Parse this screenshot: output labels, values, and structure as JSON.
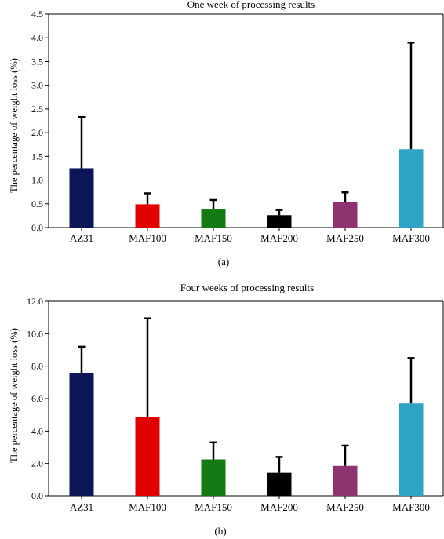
{
  "chart_data": [
    {
      "type": "bar",
      "panel_label": "(a)",
      "title": "One week of processing results",
      "ylabel": "The percentage of weight loss (%)",
      "xlabel": "",
      "categories": [
        "AZ31",
        "MAF100",
        "MAF150",
        "MAF200",
        "MAF250",
        "MAF300"
      ],
      "values": [
        1.25,
        0.49,
        0.38,
        0.26,
        0.54,
        1.65
      ],
      "error_upper": [
        2.33,
        0.72,
        0.58,
        0.37,
        0.74,
        3.9
      ],
      "colors": [
        "#0c1557",
        "#e00000",
        "#137a13",
        "#000000",
        "#8e3370",
        "#2ea3c3"
      ],
      "ylim": [
        0,
        4.5
      ],
      "yticks": [
        "0.0",
        "0.5",
        "1.0",
        "1.5",
        "2.0",
        "2.5",
        "3.0",
        "3.5",
        "4.0",
        "4.5"
      ],
      "grid": false
    },
    {
      "type": "bar",
      "panel_label": "(b)",
      "title": "Four weeks of processing results",
      "ylabel": "The percentage of weight loss (%)",
      "xlabel": "",
      "categories": [
        "AZ31",
        "MAF100",
        "MAF150",
        "MAF200",
        "MAF250",
        "MAF300"
      ],
      "values": [
        7.55,
        4.85,
        2.25,
        1.42,
        1.85,
        5.7
      ],
      "error_upper": [
        9.2,
        10.95,
        3.3,
        2.4,
        3.1,
        8.5
      ],
      "colors": [
        "#0c1557",
        "#e00000",
        "#137a13",
        "#000000",
        "#8e3370",
        "#2ea3c3"
      ],
      "ylim": [
        0,
        12
      ],
      "yticks": [
        "0.0",
        "2.0",
        "4.0",
        "6.0",
        "8.0",
        "10.0",
        "12.0"
      ],
      "grid": false
    }
  ]
}
